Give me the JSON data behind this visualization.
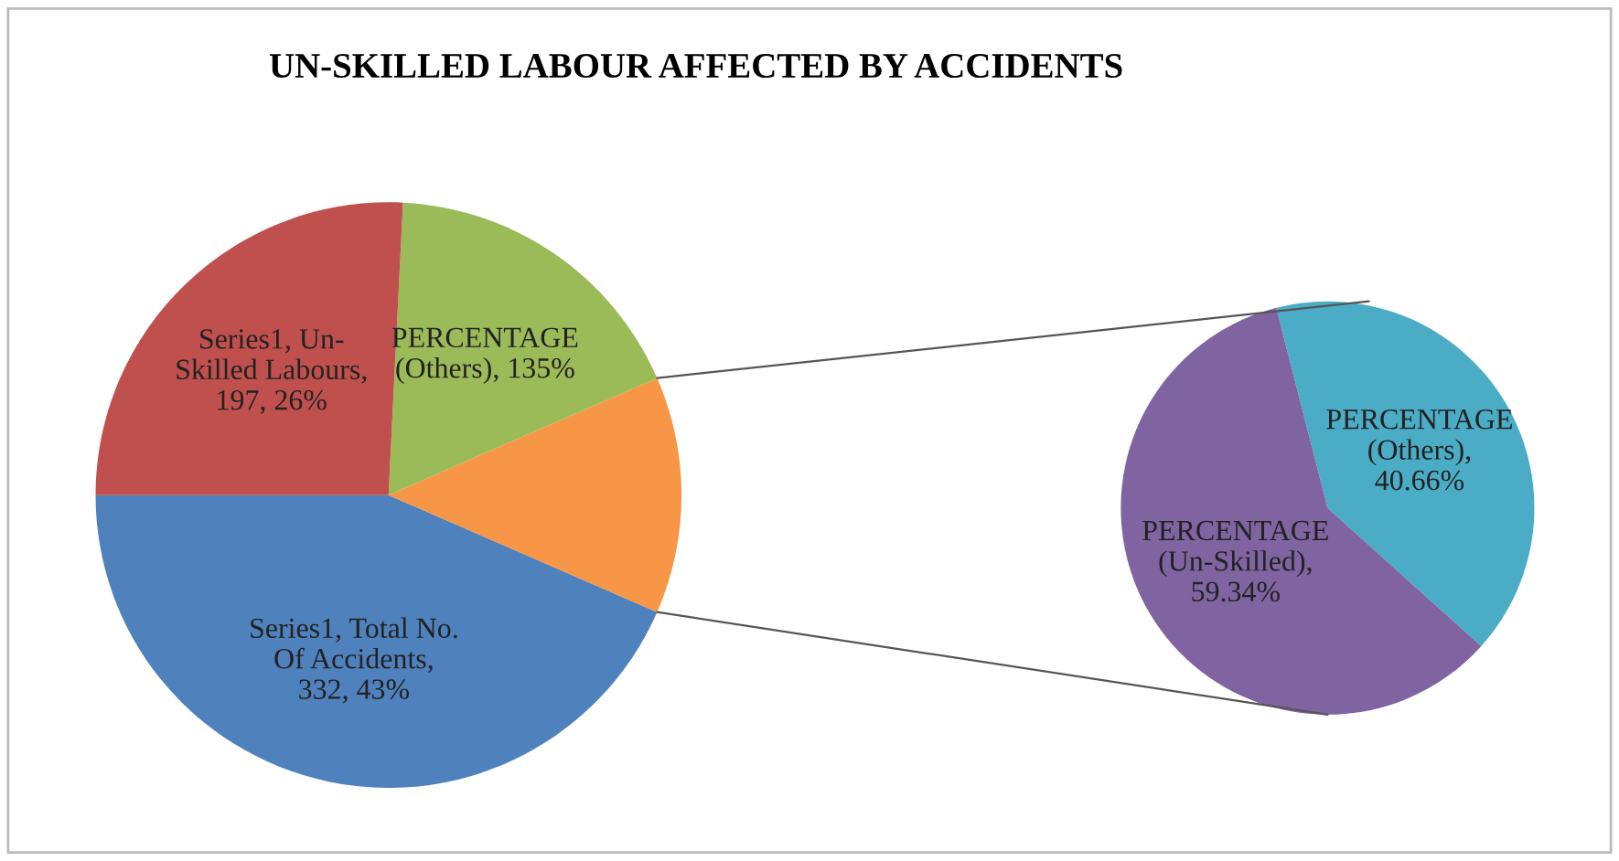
{
  "chart_data": [
    {
      "type": "pie",
      "title": "UN-SKILLED LABOUR AFFECTED BY ACCIDENTS",
      "categories": [
        null,
        null,
        null,
        null
      ],
      "values": [
        332,
        100,
        135,
        197
      ],
      "colors": [
        "#4f81bd",
        "#f79646",
        "#9bbb59",
        "#c0504d"
      ],
      "value_labels": [
        "Series1, Total No.\nOf Accidents,\n332, 43%",
        null,
        "PERCENTAGE\n(Others), 135%",
        "Series1, Un-\nSkilled Labours,\n197, 26%"
      ]
    },
    {
      "type": "pie",
      "categories": [
        null,
        null
      ],
      "values": [
        40.66,
        59.34
      ],
      "colors": [
        "#4bacc6",
        "#8064a2"
      ],
      "value_labels": [
        "PERCENTAGE\n(Others),\n40.66%",
        "PERCENTAGE\n(Un-Skilled),\n59.34%"
      ]
    }
  ]
}
